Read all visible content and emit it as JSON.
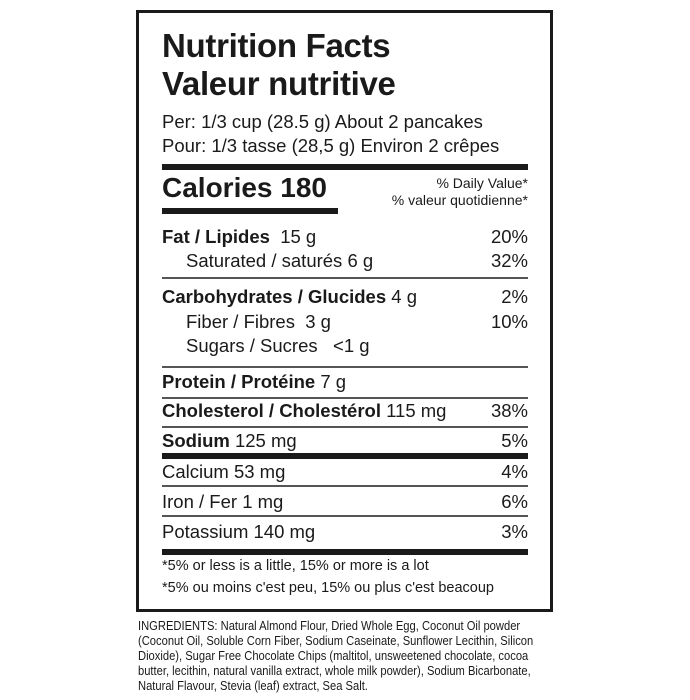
{
  "title_en": "Nutrition Facts",
  "title_fr": "Valeur nutritive",
  "serving_en": "Per: 1/3 cup (28.5 g) About 2 pancakes",
  "serving_fr": "Pour: 1/3 tasse (28,5 g) Environ 2 crêpes",
  "calories": {
    "label": "Calories 180"
  },
  "daily_value_en": "% Daily Value*",
  "daily_value_fr": "% valeur quotidienne*",
  "nutrients": [
    {
      "name": "Fat / Lipides",
      "amount": "15 g",
      "dv": "20%"
    },
    {
      "name": "Saturated / saturés",
      "amount": "6 g",
      "dv": "32%"
    },
    {
      "name": "Carbohydrates / Glucides",
      "amount": "4 g",
      "dv": "2%"
    },
    {
      "name": "Fiber / Fibres",
      "amount": "3 g",
      "dv": "10%"
    },
    {
      "name": "Sugars / Sucres",
      "amount": "<1 g",
      "dv": ""
    },
    {
      "name": "Protein / Protéine",
      "amount": "7 g",
      "dv": ""
    },
    {
      "name": "Cholesterol / Cholestérol",
      "amount": "115 mg",
      "dv": "38%"
    },
    {
      "name": "Sodium",
      "amount": "125 mg",
      "dv": "5%"
    },
    {
      "name": "Calcium",
      "amount": "53 mg",
      "dv": "4%"
    },
    {
      "name": "Iron / Fer",
      "amount": "1 mg",
      "dv": "6%"
    },
    {
      "name": "Potassium",
      "amount": "140 mg",
      "dv": "3%"
    }
  ],
  "footnote_en": "*5% or less is a little, 15% or more is a lot",
  "footnote_fr": "*5% ou moins c'est peu, 15% ou plus c'est beacoup",
  "ingredients": "INGREDIENTS: Natural Almond Flour, Dried Whole Egg, Coconut Oil powder (Coconut Oil, Soluble Corn Fiber, Sodium Caseinate, Sunflower Lecithin, Silicon Dioxide), Sugar Free Chocolate Chips (maltitol, unsweetened chocolate, cocoa butter, lecithin, natural vanilla extract, whole milk powder), Sodium Bicarbonate, Natural Flavour, Stevia (leaf) extract, Sea Salt."
}
